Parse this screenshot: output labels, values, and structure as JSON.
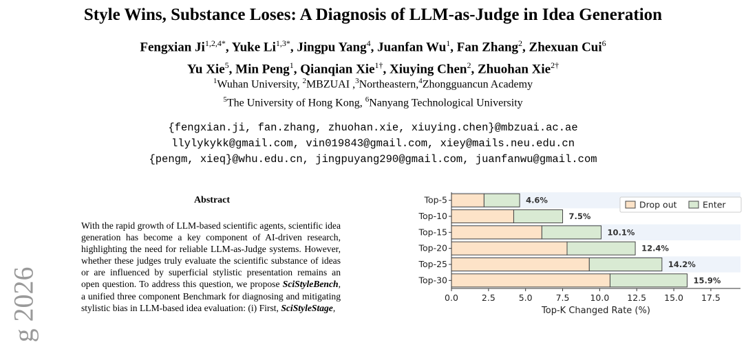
{
  "margin_text": "g 2026",
  "title": "Style Wins, Substance Loses: A Diagnosis of LLM-as-Judge in Idea Generation",
  "authors_line1": [
    {
      "name": "Fengxian Ji",
      "sup": "1,2,4*"
    },
    {
      "name": "Yuke Li",
      "sup": "1,3*"
    },
    {
      "name": "Jingpu Yang",
      "sup": "4"
    },
    {
      "name": "Juanfan Wu",
      "sup": "1"
    },
    {
      "name": "Fan Zhang",
      "sup": "2"
    },
    {
      "name": "Zhexuan Cui",
      "sup": "6"
    }
  ],
  "authors_line2": [
    {
      "name": "Yu Xie",
      "sup": "5"
    },
    {
      "name": "Min Peng",
      "sup": "1"
    },
    {
      "name": "Qianqian Xie",
      "sup": "1†"
    },
    {
      "name": "Xiuying Chen",
      "sup": "2"
    },
    {
      "name": "Zhuohan Xie",
      "sup": "2†"
    }
  ],
  "affiliations_line1": [
    {
      "sup": "1",
      "text": "Wuhan University, "
    },
    {
      "sup": "2",
      "text": "MBZUAI ,"
    },
    {
      "sup": "3",
      "text": "Northeastern,"
    },
    {
      "sup": "4",
      "text": "Zhongguancun Academy"
    }
  ],
  "affiliations_line2": [
    {
      "sup": "5",
      "text": "The University of Hong Kong, "
    },
    {
      "sup": "6",
      "text": "Nanyang Technological University"
    }
  ],
  "emails": [
    "{fengxian.ji, fan.zhang, zhuohan.xie, xiuying.chen}@mbzuai.ac.ae",
    "llylykykk@gmail.com, vin019843@gmail.com, xiey@mails.neu.edu.cn",
    "{pengm, xieq}@whu.edu.cn, jingpuyang290@gmail.com, juanfanwu@gmail.com"
  ],
  "abstract": {
    "heading": "Abstract",
    "text_before": "With the rapid growth of LLM-based scientific agents, scientific idea generation has become a key component of AI-driven research, highlighting the need for reliable LLM-as-Judge systems. However, whether these judges truly evaluate the scientific substance of ideas or are influenced by superficial stylistic presentation remains an open question. To address this question, we propose ",
    "bench_name": "SciStyleBench",
    "text_middle": ", a unified three component Benchmark for diagnosing and mitigating stylistic bias in LLM-based idea evaluation: (i) First, ",
    "stage_name": "SciStyleStage",
    "text_after": ","
  },
  "chart_data": {
    "type": "bar",
    "orientation": "horizontal",
    "stacked": true,
    "categories": [
      "Top-5",
      "Top-10",
      "Top-15",
      "Top-20",
      "Top-25",
      "Top-30"
    ],
    "series": [
      {
        "name": "Drop out",
        "color": "#fde3c8",
        "values": [
          2.2,
          4.2,
          6.1,
          7.8,
          9.3,
          10.7
        ]
      },
      {
        "name": "Enter",
        "color": "#d9ead3",
        "values": [
          2.4,
          3.3,
          4.0,
          4.6,
          4.9,
          5.2
        ]
      }
    ],
    "totals_labels": [
      "4.6%",
      "7.5%",
      "10.1%",
      "12.4%",
      "14.2%",
      "15.9%"
    ],
    "xlabel": "Top-K Changed Rate (%)",
    "xlim": [
      0,
      19.5
    ],
    "xticks": [
      "0.0",
      "2.5",
      "5.0",
      "7.5",
      "10.0",
      "12.5",
      "15.0",
      "17.5"
    ],
    "legend_position": "top-right"
  }
}
